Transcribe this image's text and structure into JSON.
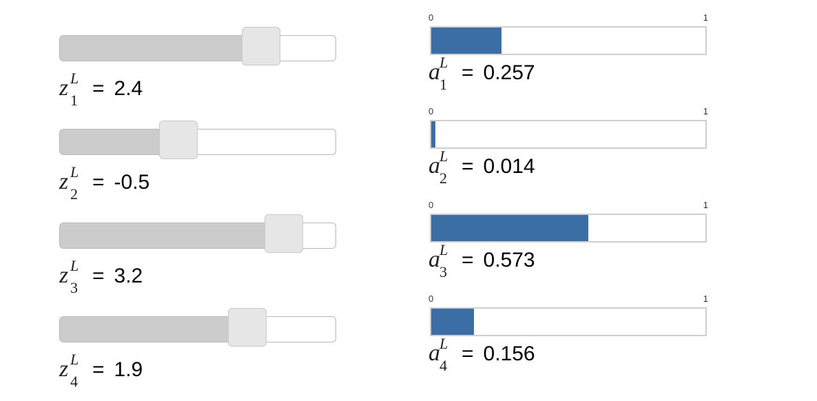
{
  "sliders": [
    {
      "sub": "1",
      "sup": "L",
      "var": "z",
      "eq": "=",
      "value": "2.4",
      "fraction": 0.73
    },
    {
      "sub": "2",
      "sup": "L",
      "var": "z",
      "eq": "=",
      "value": "-0.5",
      "fraction": 0.43
    },
    {
      "sub": "3",
      "sup": "L",
      "var": "z",
      "eq": "=",
      "value": "3.2",
      "fraction": 0.81
    },
    {
      "sub": "4",
      "sup": "L",
      "var": "z",
      "eq": "=",
      "value": "1.9",
      "fraction": 0.68
    }
  ],
  "bars": [
    {
      "sub": "1",
      "sup": "L",
      "var": "a",
      "eq": "=",
      "value": "0.257",
      "tick_min": "0",
      "tick_max": "1",
      "fraction": 0.257
    },
    {
      "sub": "2",
      "sup": "L",
      "var": "a",
      "eq": "=",
      "value": "0.014",
      "tick_min": "0",
      "tick_max": "1",
      "fraction": 0.014
    },
    {
      "sub": "3",
      "sup": "L",
      "var": "a",
      "eq": "=",
      "value": "0.573",
      "tick_min": "0",
      "tick_max": "1",
      "fraction": 0.573
    },
    {
      "sub": "4",
      "sup": "L",
      "var": "a",
      "eq": "=",
      "value": "0.156",
      "tick_min": "0",
      "tick_max": "1",
      "fraction": 0.156
    }
  ],
  "colors": {
    "bar_fill": "#3a6ea5",
    "slider_fill": "#cccccc",
    "handle": "#e6e6e6"
  }
}
